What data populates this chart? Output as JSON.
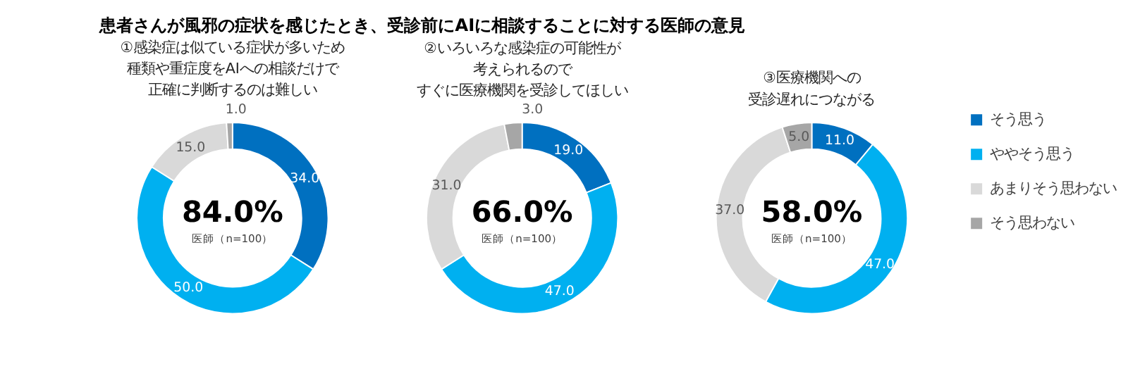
{
  "chart_data": [
    {
      "type": "donut",
      "title": "患者さんが風邪の症状を感じたとき、受診前にAIに相談することに対する医師の意見",
      "subtitle": "①感染症は似ている症状が多いため種類や重症度をAIへの相談だけで正確に判断するのは難しい",
      "categories": [
        null,
        null,
        null,
        null
      ],
      "values": [
        34,
        50,
        15,
        1
      ],
      "value_labels": [
        "34.0",
        "50.0",
        "15.0",
        "1.0"
      ],
      "colors": [
        "#0070c0",
        "#00b0f0",
        "#d9d9d9",
        "#a6a6a6"
      ],
      "annotations": [
        "84.0%",
        "医師（n=100）"
      ],
      "legend": false
    },
    {
      "type": "donut",
      "subtitle": "②いろいろな感染症の可能性が考えられるのですぐに医療機関を受診してほしい",
      "categories": [
        null,
        null,
        null,
        null
      ],
      "values": [
        19,
        47,
        31,
        3
      ],
      "value_labels": [
        "19.0",
        "47.0",
        "31.0",
        "3.0"
      ],
      "colors": [
        "#0070c0",
        "#00b0f0",
        "#d9d9d9",
        "#a6a6a6"
      ],
      "annotations": [
        "66.0%",
        "医師（n=100）"
      ],
      "legend": false
    },
    {
      "type": "donut",
      "subtitle": "③医療機関への受診遅れにつながる",
      "categories": [
        "そう思う",
        "ややそう思う",
        "あまりそう思わない",
        "そう思わない"
      ],
      "values": [
        11,
        47,
        37,
        5
      ],
      "value_labels": [
        "11.0",
        "47.0",
        "37.0",
        "5.0"
      ],
      "colors": [
        "#0070c0",
        "#00b0f0",
        "#d9d9d9",
        "#a6a6a6"
      ],
      "annotations": [
        "58.0%",
        "医師（n=100）"
      ],
      "legend": "right"
    }
  ]
}
